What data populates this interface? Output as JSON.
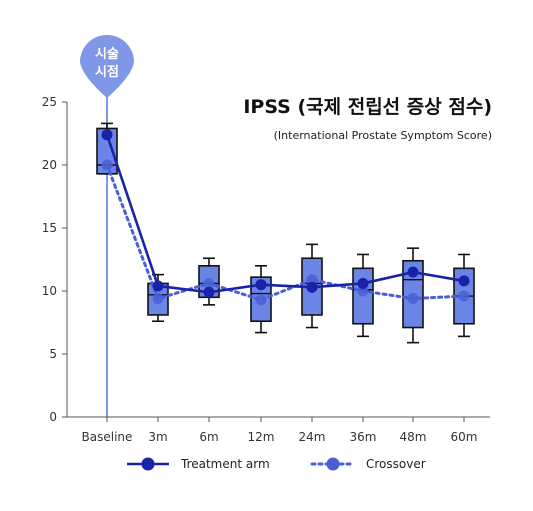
{
  "chart_data": {
    "type": "box-line",
    "title": "IPSS (국제 전립선 증상 점수)",
    "subtitle": "(International Prostate Symptom Score)",
    "categories": [
      "Baseline",
      "3m",
      "6m",
      "12m",
      "24m",
      "36m",
      "48m",
      "60m"
    ],
    "ylim": [
      0,
      25
    ],
    "yticks": [
      0,
      5,
      10,
      15,
      20,
      25
    ],
    "grid": false,
    "procedure_marker": {
      "category": "Baseline",
      "label": "시술\n시점"
    },
    "boxes": [
      {
        "whisker_low": 19.3,
        "q1": 19.3,
        "median": 20.0,
        "q3": 22.9,
        "whisker_high": 23.3
      },
      {
        "whisker_low": 7.6,
        "q1": 8.1,
        "median": 9.7,
        "q3": 10.6,
        "whisker_high": 11.3
      },
      {
        "whisker_low": 8.9,
        "q1": 9.5,
        "median": 10.6,
        "q3": 12.0,
        "whisker_high": 12.6
      },
      {
        "whisker_low": 6.7,
        "q1": 7.6,
        "median": 9.8,
        "q3": 11.1,
        "whisker_high": 12.0
      },
      {
        "whisker_low": 7.1,
        "q1": 8.1,
        "median": 10.6,
        "q3": 12.6,
        "whisker_high": 13.7
      },
      {
        "whisker_low": 6.4,
        "q1": 7.4,
        "median": 10.1,
        "q3": 11.8,
        "whisker_high": 12.9
      },
      {
        "whisker_low": 5.9,
        "q1": 7.1,
        "median": 10.9,
        "q3": 12.4,
        "whisker_high": 13.4
      },
      {
        "whisker_low": 6.4,
        "q1": 7.4,
        "median": 9.6,
        "q3": 11.8,
        "whisker_high": 12.9
      }
    ],
    "series": [
      {
        "name": "Treatment arm",
        "style": "solid",
        "color": "#1a22a8",
        "values": [
          22.4,
          10.4,
          9.9,
          10.5,
          10.3,
          10.6,
          11.5,
          10.8
        ]
      },
      {
        "name": "Crossover",
        "style": "dotted",
        "color": "#4a5fd6",
        "values": [
          20.0,
          9.4,
          10.6,
          9.3,
          10.9,
          10.0,
          9.4,
          9.6
        ]
      }
    ],
    "colors": {
      "box_fill": "#6b85e6",
      "box_stroke": "#111111",
      "marker_pin": "#7f97e6",
      "marker_line": "#7f97e6",
      "axis": "#555555"
    }
  }
}
